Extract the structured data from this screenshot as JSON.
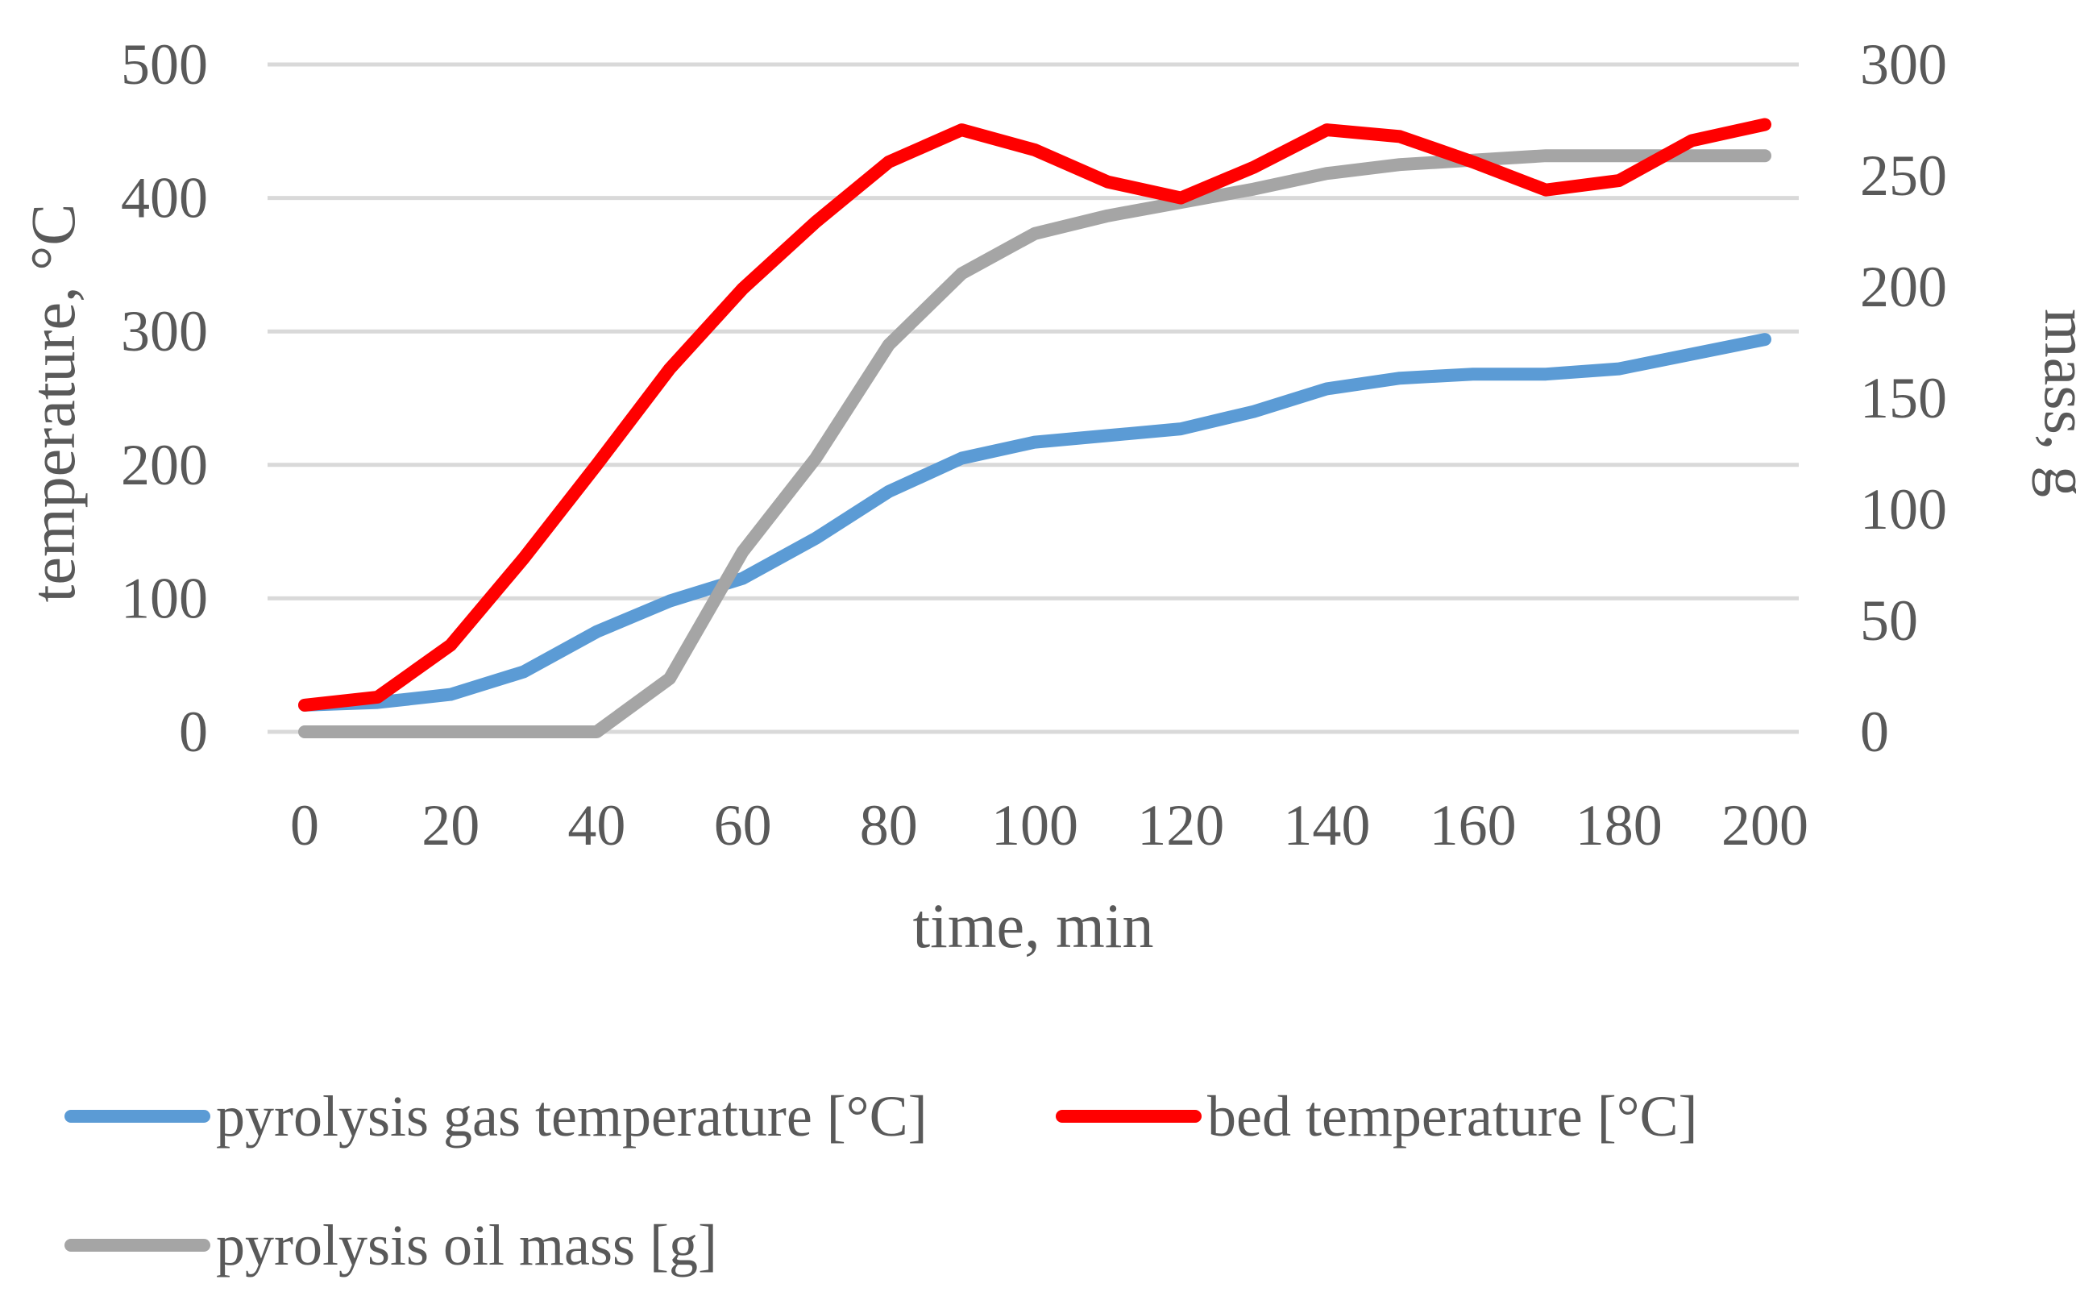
{
  "chart_data": {
    "type": "line",
    "title": "",
    "xlabel": "time, min",
    "ylabel": "temperature, °C",
    "y2label": "mass, g",
    "x": [
      0,
      10,
      20,
      30,
      40,
      50,
      60,
      70,
      80,
      90,
      100,
      110,
      120,
      130,
      140,
      150,
      160,
      170,
      180,
      190,
      200
    ],
    "x_ticks": [
      "0",
      "20",
      "40",
      "60",
      "80",
      "100",
      "120",
      "140",
      "160",
      "180",
      "200"
    ],
    "xlim": [
      0,
      200
    ],
    "ylim": [
      0,
      500
    ],
    "y_ticks": [
      "0",
      "100",
      "200",
      "300",
      "400",
      "500"
    ],
    "y2lim": [
      0,
      300
    ],
    "y2_ticks": [
      "0",
      "50",
      "100",
      "150",
      "200",
      "250",
      "300"
    ],
    "grid": true,
    "legend_position": "bottom",
    "series": [
      {
        "name": "pyrolysis gas temperature [°C]",
        "axis": "left",
        "color": "#5b9bd5",
        "values": [
          20,
          22,
          28,
          45,
          75,
          98,
          115,
          145,
          180,
          205,
          217,
          222,
          227,
          240,
          257,
          265,
          268,
          268,
          272,
          283,
          294
        ]
      },
      {
        "name": "bed temperature [°C]",
        "axis": "left",
        "color": "#ff0000",
        "values": [
          20,
          26,
          65,
          130,
          200,
          272,
          332,
          382,
          427,
          451,
          436,
          412,
          400,
          423,
          451,
          446,
          427,
          406,
          413,
          443,
          455
        ]
      },
      {
        "name": "pyrolysis oil mass [g]",
        "axis": "right",
        "color": "#a5a5a5",
        "values": [
          0,
          0,
          0,
          0,
          0,
          24,
          81,
          123,
          174,
          206,
          224,
          232,
          238,
          244,
          251,
          255,
          257,
          259,
          259,
          259,
          259
        ]
      }
    ],
    "legend": {
      "rows": [
        [
          0,
          1
        ],
        [
          2
        ]
      ]
    }
  }
}
